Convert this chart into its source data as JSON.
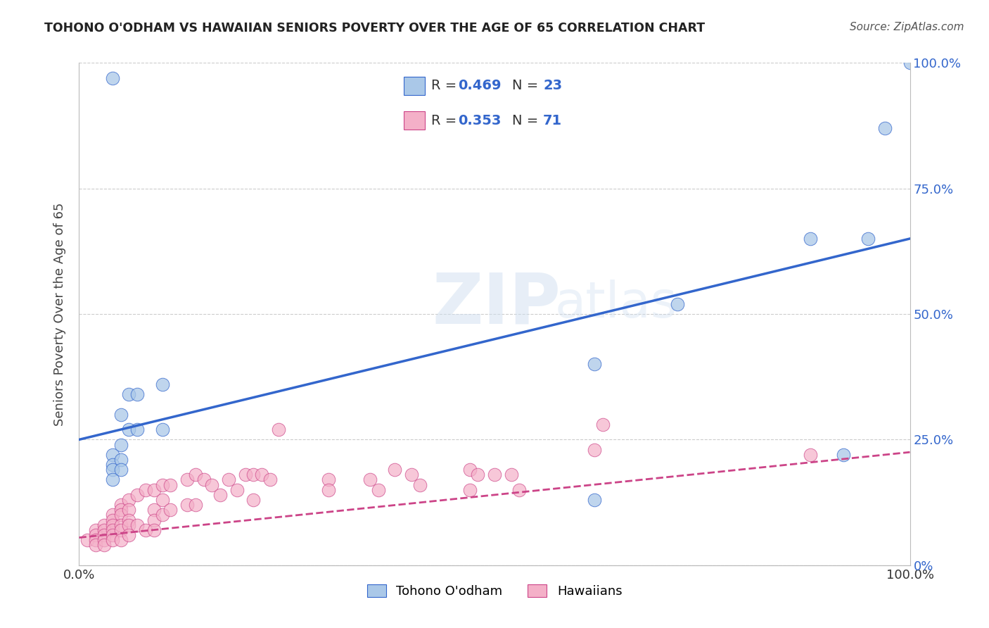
{
  "title": "TOHONO O'ODHAM VS HAWAIIAN SENIORS POVERTY OVER THE AGE OF 65 CORRELATION CHART",
  "source": "Source: ZipAtlas.com",
  "ylabel": "Seniors Poverty Over the Age of 65",
  "legend_label_blue": "Tohono O'odham",
  "legend_label_pink": "Hawaiians",
  "blue_color": "#aac8e8",
  "pink_color": "#f4b0c8",
  "blue_line_color": "#3366cc",
  "pink_line_color": "#cc4488",
  "watermark_zip": "ZIP",
  "watermark_atlas": "atlas",
  "blue_scatter_x": [
    0.04,
    0.04,
    0.04,
    0.04,
    0.04,
    0.05,
    0.05,
    0.05,
    0.05,
    0.06,
    0.06,
    0.07,
    0.07,
    0.1,
    0.1,
    0.62,
    0.62,
    0.72,
    0.88,
    0.92,
    0.95,
    0.97,
    1.0
  ],
  "blue_scatter_y": [
    0.97,
    0.22,
    0.2,
    0.19,
    0.17,
    0.3,
    0.24,
    0.21,
    0.19,
    0.34,
    0.27,
    0.34,
    0.27,
    0.36,
    0.27,
    0.4,
    0.13,
    0.52,
    0.65,
    0.22,
    0.65,
    0.87,
    1.0
  ],
  "pink_scatter_x": [
    0.01,
    0.02,
    0.02,
    0.02,
    0.02,
    0.03,
    0.03,
    0.03,
    0.03,
    0.03,
    0.04,
    0.04,
    0.04,
    0.04,
    0.04,
    0.04,
    0.05,
    0.05,
    0.05,
    0.05,
    0.05,
    0.05,
    0.06,
    0.06,
    0.06,
    0.06,
    0.06,
    0.07,
    0.07,
    0.08,
    0.08,
    0.09,
    0.09,
    0.09,
    0.09,
    0.1,
    0.1,
    0.1,
    0.11,
    0.11,
    0.13,
    0.13,
    0.14,
    0.14,
    0.15,
    0.16,
    0.17,
    0.18,
    0.19,
    0.2,
    0.21,
    0.21,
    0.22,
    0.23,
    0.24,
    0.3,
    0.3,
    0.35,
    0.36,
    0.38,
    0.4,
    0.41,
    0.47,
    0.47,
    0.48,
    0.5,
    0.52,
    0.53,
    0.62,
    0.63,
    0.88
  ],
  "pink_scatter_y": [
    0.05,
    0.07,
    0.06,
    0.05,
    0.04,
    0.08,
    0.07,
    0.06,
    0.05,
    0.04,
    0.1,
    0.09,
    0.08,
    0.07,
    0.06,
    0.05,
    0.12,
    0.11,
    0.1,
    0.08,
    0.07,
    0.05,
    0.13,
    0.11,
    0.09,
    0.08,
    0.06,
    0.14,
    0.08,
    0.15,
    0.07,
    0.15,
    0.11,
    0.09,
    0.07,
    0.16,
    0.13,
    0.1,
    0.16,
    0.11,
    0.17,
    0.12,
    0.18,
    0.12,
    0.17,
    0.16,
    0.14,
    0.17,
    0.15,
    0.18,
    0.18,
    0.13,
    0.18,
    0.17,
    0.27,
    0.17,
    0.15,
    0.17,
    0.15,
    0.19,
    0.18,
    0.16,
    0.19,
    0.15,
    0.18,
    0.18,
    0.18,
    0.15,
    0.23,
    0.28,
    0.22
  ],
  "blue_line_x": [
    0.0,
    1.0
  ],
  "blue_line_y": [
    0.25,
    0.65
  ],
  "pink_line_x": [
    0.0,
    1.0
  ],
  "pink_line_y": [
    0.055,
    0.225
  ],
  "xlim": [
    0.0,
    1.0
  ],
  "ylim": [
    0.0,
    1.0
  ],
  "ytick_positions": [
    0.0,
    0.25,
    0.5,
    0.75,
    1.0
  ],
  "ytick_labels": [
    "0%",
    "25.0%",
    "50.0%",
    "75.0%",
    "100.0%"
  ],
  "xtick_positions": [
    0.0,
    1.0
  ],
  "xtick_labels": [
    "0.0%",
    "100.0%"
  ]
}
